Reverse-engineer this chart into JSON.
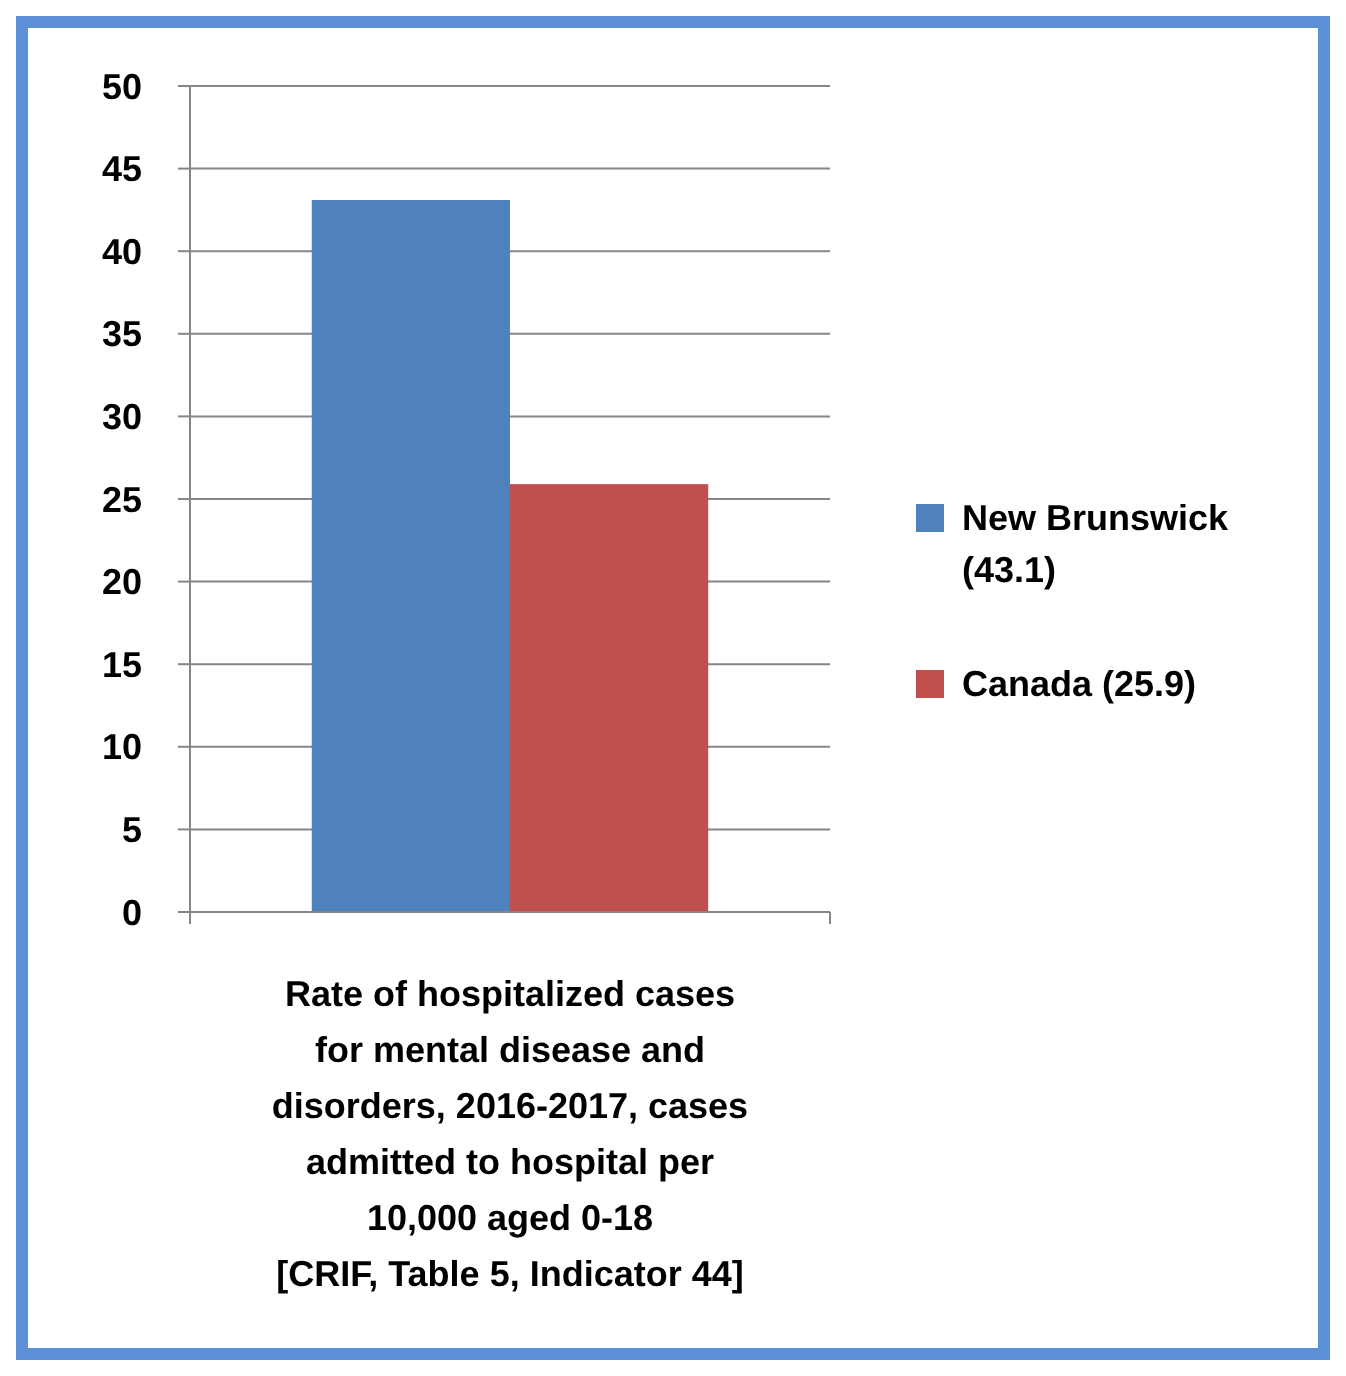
{
  "chart_data": {
    "type": "bar",
    "categories": [
      "Rate of hospitalized cases\nfor mental disease and\ndisorders, 2016-2017, cases\nadmitted to hospital per\n10,000 aged 0-18\n[CRIF, Table 5, Indicator 44]"
    ],
    "series": [
      {
        "name": "New Brunswick\n(43.1)",
        "color": "#4f81bd",
        "values": [
          43.1
        ]
      },
      {
        "name": "Canada (25.9)",
        "color": "#c0504d",
        "values": [
          25.9
        ]
      }
    ],
    "ylim": [
      0,
      50
    ],
    "yticks": [
      0,
      5,
      10,
      15,
      20,
      25,
      30,
      35,
      40,
      45,
      50
    ],
    "grid": "y",
    "legend": "right"
  }
}
